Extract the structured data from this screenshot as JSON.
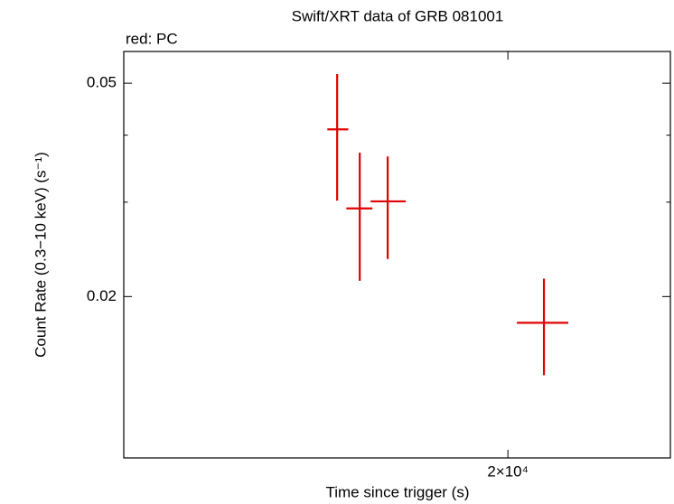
{
  "chart_data": {
    "type": "errorbar",
    "title": "Swift/XRT data of GRB 081001",
    "subtitle": "red: PC",
    "x_label": "Time since trigger (s)",
    "y_label": "Count Rate (0.3−10 keV) (s⁻¹)",
    "xscale": "log",
    "yscale": "log",
    "xlim": [
      12260,
      24600
    ],
    "ylim": [
      0.01,
      0.0573
    ],
    "xticks": [
      {
        "value": 20000,
        "label": "2×10⁴"
      }
    ],
    "yticks": [
      0.02,
      0.05
    ],
    "yminor_ticks": [
      0.03,
      0.04
    ],
    "series": [
      {
        "name": "PC",
        "color": "#e00000",
        "x": [
          16090,
          16560,
          17160,
          20940
        ],
        "x_lower": [
          15890,
          16280,
          16790,
          20230
        ],
        "x_upper": [
          16320,
          16830,
          17560,
          21600
        ],
        "values": [
          0.041,
          0.0292,
          0.0301,
          0.01787
        ],
        "y_lower": [
          0.0302,
          0.0214,
          0.0235,
          0.01427
        ],
        "y_upper": [
          0.052,
          0.0371,
          0.0365,
          0.0216
        ]
      }
    ]
  }
}
